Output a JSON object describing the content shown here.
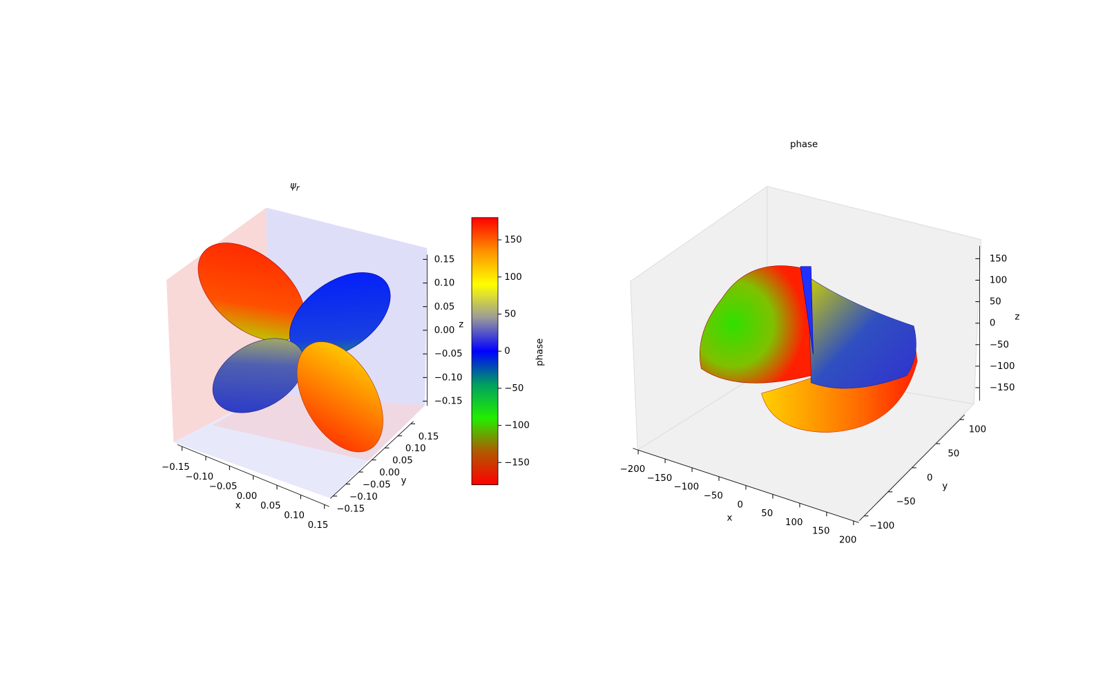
{
  "chart_data": [
    {
      "type": "surface3d",
      "title": "ψ",
      "title_subscript": "r",
      "xlabel": "x",
      "ylabel": "y",
      "zlabel": "z",
      "xlim": [
        -0.16,
        0.16
      ],
      "ylim": [
        -0.16,
        0.16
      ],
      "zlim": [
        -0.16,
        0.16
      ],
      "xticks": [
        {
          "value": -0.15,
          "label": "−0.15"
        },
        {
          "value": -0.1,
          "label": "−0.10"
        },
        {
          "value": -0.05,
          "label": "−0.05"
        },
        {
          "value": 0,
          "label": "0.00"
        },
        0.05,
        {
          "value": 0.1,
          "label": "0.10"
        },
        0.15
      ],
      "yticks": [
        {
          "value": -0.15,
          "label": "−0.15"
        },
        {
          "value": -0.1,
          "label": "−0.10"
        },
        {
          "value": -0.05,
          "label": "−0.05"
        },
        {
          "value": 0,
          "label": "0.00"
        },
        0.05,
        {
          "value": 0.1,
          "label": "0.10"
        },
        0.15
      ],
      "zticks": [
        {
          "value": -0.15,
          "label": "−0.15"
        },
        {
          "value": -0.1,
          "label": "−0.10"
        },
        {
          "value": -0.05,
          "label": "−0.05"
        },
        {
          "value": 0,
          "label": "0.00"
        },
        0.05,
        {
          "value": 0.1,
          "label": "0.10"
        },
        0.15
      ],
      "colorbar": {
        "label": "phase",
        "lim": [
          -180,
          180
        ],
        "ticks": [
          {
            "value": -150,
            "label": "−150"
          },
          {
            "value": -100,
            "label": "−100"
          },
          {
            "value": -50,
            "label": "−50"
          },
          0,
          50,
          100,
          150
        ],
        "colors": [
          "#ff0000",
          "#b05a00",
          "#22ee00",
          "#00a060",
          "#0000ff",
          "#9a9a9a",
          "#ffff00",
          "#ff9000",
          "#ff0000"
        ]
      }
    },
    {
      "type": "surface3d",
      "title": "phase",
      "xlabel": "x",
      "ylabel": "y",
      "zlabel": "z",
      "xlim": [
        -210,
        210
      ],
      "ylim": [
        -110,
        110
      ],
      "zlim": [
        -180,
        180
      ],
      "xticks": [
        {
          "value": -200,
          "label": "−200"
        },
        {
          "value": -150,
          "label": "−150"
        },
        {
          "value": -100,
          "label": "−100"
        },
        {
          "value": -50,
          "label": "−50"
        },
        0,
        50,
        100,
        150,
        200
      ],
      "yticks": [
        {
          "value": -100,
          "label": "−100"
        },
        {
          "value": -50,
          "label": "−50"
        },
        0,
        50,
        100
      ],
      "zticks": [
        {
          "value": -150,
          "label": "−150"
        },
        {
          "value": -100,
          "label": "−100"
        },
        {
          "value": -50,
          "label": "−50"
        },
        0,
        50,
        100,
        150
      ],
      "pane_color": "#f0f0f0"
    }
  ]
}
